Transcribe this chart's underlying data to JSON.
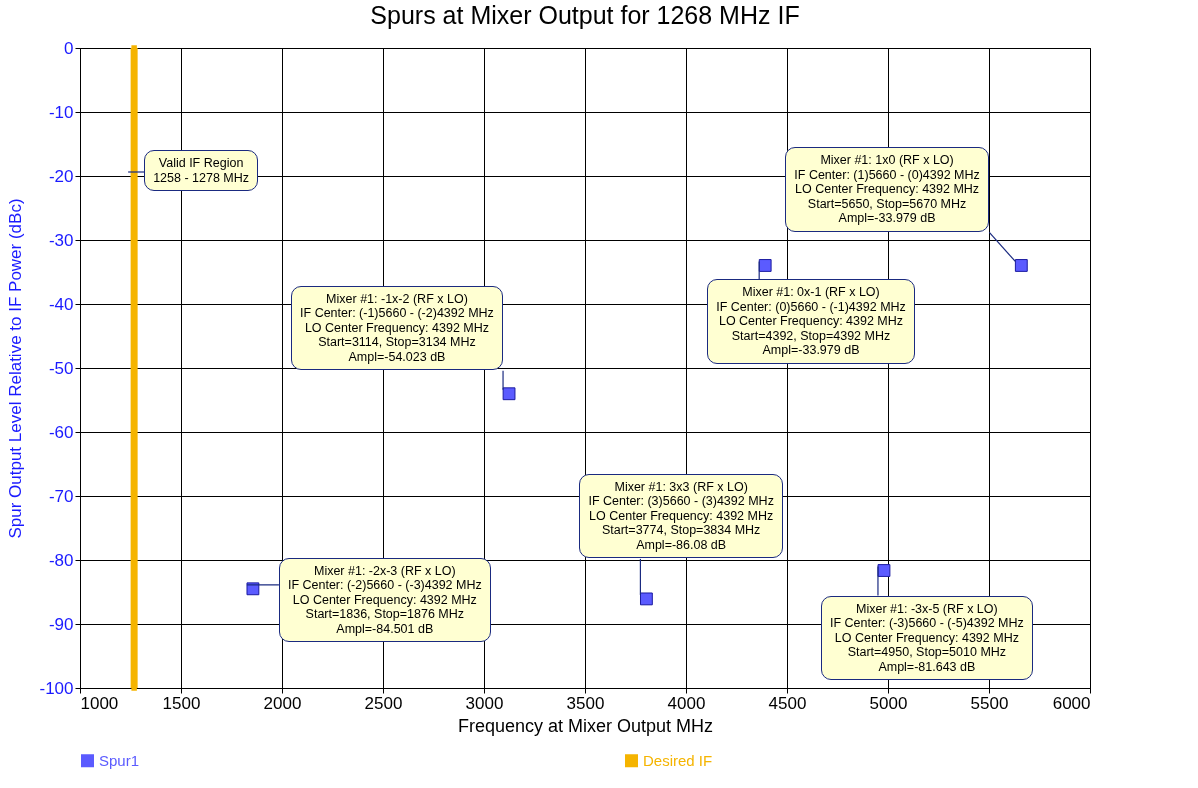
{
  "chart_data": {
    "type": "scatter",
    "title": "Spurs at Mixer Output for 1268 MHz IF",
    "xlabel": "Frequency at Mixer Output MHz",
    "ylabel": "Spur Output Level Relative to IF Power (dBc)",
    "xlim": [
      1000,
      6000
    ],
    "xticks": [
      1000,
      1500,
      2000,
      2500,
      3000,
      3500,
      4000,
      4500,
      5000,
      5500,
      6000
    ],
    "ylim": [
      -100,
      0
    ],
    "yticks": [
      -100,
      -90,
      -80,
      -70,
      -60,
      -50,
      -40,
      -30,
      -20,
      -10,
      0
    ],
    "grid": true,
    "legend": "bottom",
    "marker": "square",
    "series": [
      {
        "name": "Spur1",
        "color": "#5b5bff",
        "x": [
          5660,
          4392,
          3124,
          3804,
          1856,
          4980
        ],
        "values": [
          -33.979,
          -33.979,
          -54.023,
          -86.08,
          -84.501,
          -81.643
        ]
      },
      {
        "name": "Desired IF",
        "type": "line",
        "color": "#f5b400",
        "x": [
          1268,
          1268
        ],
        "values": [
          0,
          -100
        ]
      }
    ],
    "annotations": [
      {
        "text": "Valid IF Region\n1258 - 1278 MHz",
        "x": 1268,
        "y": -20
      },
      {
        "text": "Mixer #1: 1x0 (RF x LO)\nIF Center: (1)5660 - (0)4392 MHz\nLO Center Frequency: 4392 MHz\nStart=5650, Stop=5670 MHz\nAmpl=-33.979 dB",
        "x": 5660,
        "y": -33.979
      },
      {
        "text": "Mixer #1: 0x-1 (RF x LO)\nIF Center: (0)5660 - (-1)4392 MHz\nLO Center Frequency: 4392 MHz\nStart=4392, Stop=4392 MHz\nAmpl=-33.979 dB",
        "x": 4392,
        "y": -33.979
      },
      {
        "text": "Mixer #1: -1x-2 (RF x LO)\nIF Center: (-1)5660 - (-2)4392 MHz\nLO Center Frequency: 4392 MHz\nStart=3114, Stop=3134 MHz\nAmpl=-54.023 dB",
        "x": 3124,
        "y": -54.023
      },
      {
        "text": "Mixer #1: 3x3 (RF x LO)\nIF Center: (3)5660 - (3)4392 MHz\nLO Center Frequency: 4392 MHz\nStart=3774, Stop=3834 MHz\nAmpl=-86.08 dB",
        "x": 3804,
        "y": -86.08
      },
      {
        "text": "Mixer #1: -2x-3 (RF x LO)\nIF Center: (-2)5660 - (-3)4392 MHz\nLO Center Frequency: 4392 MHz\nStart=1836, Stop=1876 MHz\nAmpl=-84.501 dB",
        "x": 1856,
        "y": -84.501
      },
      {
        "text": "Mixer #1: -3x-5 (RF x LO)\nIF Center: (-3)5660 - (-5)4392 MHz\nLO Center Frequency: 4392 MHz\nStart=4950, Stop=5010 MHz\nAmpl=-81.643 dB",
        "x": 4980,
        "y": -81.643
      }
    ]
  }
}
